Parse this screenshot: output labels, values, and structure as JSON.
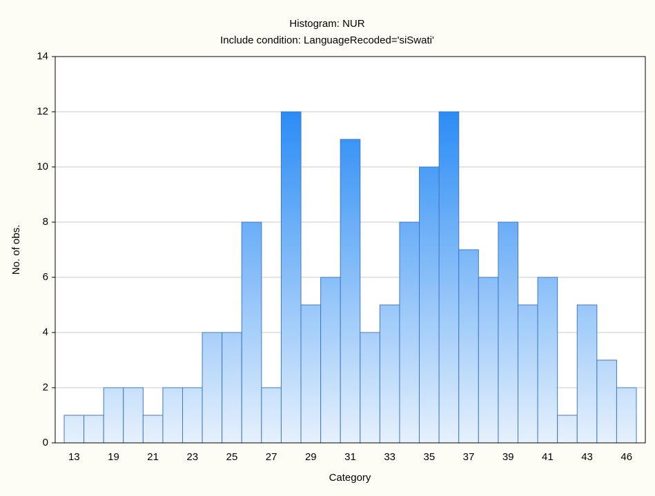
{
  "chart_data": {
    "type": "bar",
    "title": "Histogram: NUR",
    "subtitle": "Include condition: LanguageRecoded='siSwati'",
    "x_label": "Category",
    "y_label": "No. of obs.",
    "categories": [
      13,
      null,
      19,
      null,
      21,
      null,
      23,
      null,
      25,
      null,
      27,
      null,
      29,
      null,
      31,
      null,
      33,
      null,
      35,
      null,
      37,
      null,
      39,
      null,
      41,
      null,
      43,
      null,
      46
    ],
    "values": [
      1,
      1,
      2,
      2,
      1,
      2,
      2,
      4,
      4,
      8,
      2,
      12,
      5,
      6,
      11,
      4,
      5,
      8,
      10,
      12,
      7,
      6,
      8,
      5,
      6,
      1,
      5,
      3,
      2
    ],
    "color": "#2b8cf5",
    "ylim": [
      0,
      14
    ],
    "yticks": [
      0,
      2,
      4,
      6,
      8,
      10,
      12,
      14
    ],
    "grid": true
  }
}
